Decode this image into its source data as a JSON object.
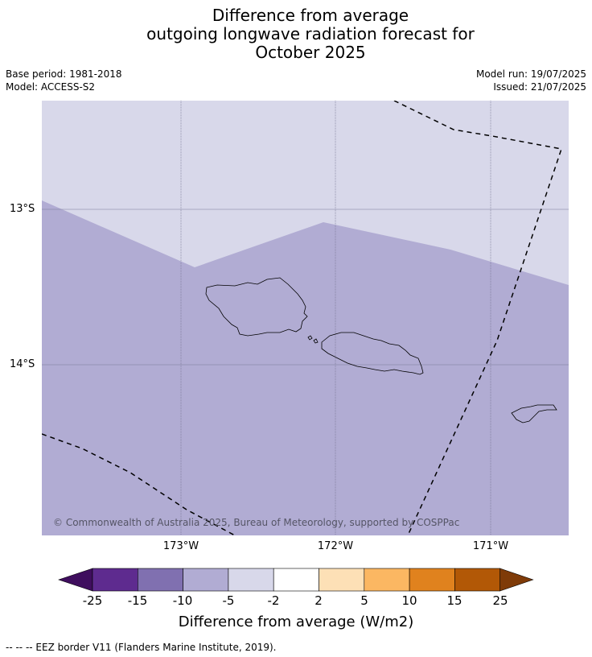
{
  "header": {
    "title_line1": "Difference from average",
    "title_line2": "outgoing longwave radiation forecast for",
    "title_line3": "October 2025",
    "base_period": "Base period: 1981-2018",
    "model": "Model: ACCESS-S2",
    "model_run": "Model run: 19/07/2025",
    "issued": "Issued: 21/07/2025"
  },
  "map": {
    "latitude_labels": [
      "13°S",
      "14°S"
    ],
    "longitude_labels": [
      "173°W",
      "172°W",
      "171°W"
    ],
    "copyright": "© Commonwealth of Australia 2025, Bureau of Meteorology, supported by COSPPac",
    "regions": [
      {
        "name": "-5 to -2 W/m2",
        "color": "#d8d8ea"
      },
      {
        "name": "-10 to -5 W/m2",
        "color": "#b1acd3"
      }
    ],
    "islands": [
      "Savai'i",
      "Upolu",
      "Tutuila"
    ]
  },
  "colorbar": {
    "ticks": [
      "-25",
      "-15",
      "-10",
      "-5",
      "-2",
      "2",
      "5",
      "10",
      "15",
      "25"
    ],
    "colors": [
      "#3f0e5e",
      "#5e2b8f",
      "#8070b0",
      "#b1acd3",
      "#d8d8ea",
      "#ffffff",
      "#fde0b6",
      "#fbb762",
      "#e0821e",
      "#b25806",
      "#7f3b08"
    ],
    "label": "Difference from average (W/m2)"
  },
  "footnote": "--  --  -- EEZ border V11 (Flanders Marine Institute, 2019)."
}
